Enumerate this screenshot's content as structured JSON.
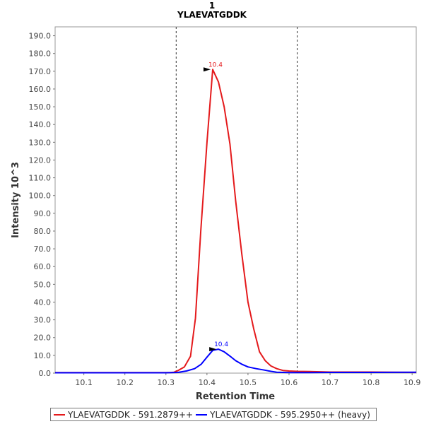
{
  "colors": {
    "light": "#e41a1c",
    "heavy": "#0000ff"
  },
  "chart_data": {
    "type": "line",
    "title": "1",
    "subtitle": "YLAEVATGDDK",
    "xlabel": "Retention Time",
    "ylabel": "Intensity 10^3",
    "xlim": [
      10.03,
      10.91
    ],
    "ylim": [
      0,
      195
    ],
    "xticks": [
      "10.1",
      "10.2",
      "10.3",
      "10.4",
      "10.5",
      "10.6",
      "10.7",
      "10.8",
      "10.9"
    ],
    "yticks": [
      "0.0",
      "10.0",
      "20.0",
      "30.0",
      "40.0",
      "50.0",
      "60.0",
      "70.0",
      "80.0",
      "90.0",
      "100.0",
      "110.0",
      "120.0",
      "130.0",
      "140.0",
      "150.0",
      "160.0",
      "170.0",
      "180.0",
      "190.0"
    ],
    "integration_boundaries": [
      10.325,
      10.62
    ],
    "grid": false,
    "legend_position": "bottom",
    "series": [
      {
        "name": "YLAEVATGDDK - 591.2879++",
        "color": "#e41a1c",
        "peak_label": "10.4",
        "peak": {
          "x": 10.414,
          "y": 171
        },
        "x": [
          10.03,
          10.1,
          10.2,
          10.3,
          10.31,
          10.32,
          10.33,
          10.345,
          10.36,
          10.372,
          10.385,
          10.4,
          10.414,
          10.428,
          10.442,
          10.456,
          10.47,
          10.485,
          10.5,
          10.514,
          10.528,
          10.542,
          10.556,
          10.57,
          10.585,
          10.6,
          10.62,
          10.65,
          10.7,
          10.8,
          10.91
        ],
        "y": [
          0.3,
          0.3,
          0.3,
          0.3,
          0.3,
          0.5,
          1.5,
          3.5,
          9.5,
          31,
          80,
          130,
          171,
          164,
          150,
          129,
          97,
          67,
          40,
          25,
          12,
          7,
          4,
          2.5,
          1.5,
          1.2,
          1,
          0.9,
          0.6,
          0.6,
          0.4
        ]
      },
      {
        "name": "YLAEVATGDDK - 595.2950++ (heavy)",
        "color": "#0000ff",
        "peak_label": "10.4",
        "peak": {
          "x": 10.428,
          "y": 13.5
        },
        "x": [
          10.03,
          10.1,
          10.2,
          10.3,
          10.33,
          10.35,
          10.37,
          10.386,
          10.4,
          10.414,
          10.428,
          10.442,
          10.456,
          10.47,
          10.485,
          10.5,
          10.52,
          10.54,
          10.556,
          10.57,
          10.6,
          10.65,
          10.7,
          10.8,
          10.91
        ],
        "y": [
          0.2,
          0.2,
          0.2,
          0.2,
          0.4,
          1.2,
          2.5,
          5,
          9,
          12.8,
          13.5,
          12,
          9.6,
          7,
          5,
          3.5,
          2.5,
          1.7,
          1,
          0.5,
          0.3,
          0.3,
          0.4,
          0.4,
          0.5
        ]
      }
    ]
  }
}
